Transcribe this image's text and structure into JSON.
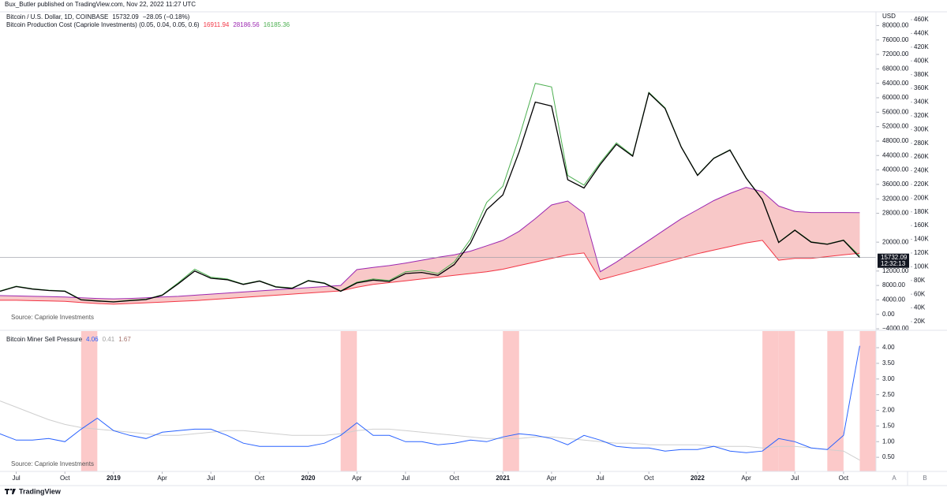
{
  "header": {
    "published": "Bux_Butler published on TradingView.com, Nov 22, 2022 11:27 UTC"
  },
  "footer": {
    "brand": "TradingView"
  },
  "buttons": [
    "A",
    "B"
  ],
  "chart_data": [
    {
      "type": "line",
      "title": "Bitcoin / U.S. Dollar, 1D, COINBASE",
      "price_last": 15732.09,
      "price_change": "−28.05 (−0.18%)",
      "countdown": "12:32:13",
      "indicator": "Bitcoin Production Cost (Capriole Investments) (0.05, 0.04, 0.05, 0.6)",
      "legend_values": [
        16911.94,
        28186.56,
        16185.36
      ],
      "axis_unit": "USD",
      "source": "Source: Capriole Investments",
      "x": [
        "2018-06",
        "2018-07",
        "2018-08",
        "2018-09",
        "2018-10",
        "2018-11",
        "2018-12",
        "2019-01",
        "2019-02",
        "2019-03",
        "2019-04",
        "2019-05",
        "2019-06",
        "2019-07",
        "2019-08",
        "2019-09",
        "2019-10",
        "2019-11",
        "2019-12",
        "2020-01",
        "2020-02",
        "2020-03",
        "2020-04",
        "2020-05",
        "2020-06",
        "2020-07",
        "2020-08",
        "2020-09",
        "2020-10",
        "2020-11",
        "2020-12",
        "2021-01",
        "2021-02",
        "2021-03",
        "2021-04",
        "2021-05",
        "2021-06",
        "2021-07",
        "2021-08",
        "2021-09",
        "2021-10",
        "2021-11",
        "2021-12",
        "2022-01",
        "2022-02",
        "2022-03",
        "2022-04",
        "2022-05",
        "2022-06",
        "2022-07",
        "2022-08",
        "2022-09",
        "2022-10",
        "2022-11"
      ],
      "xlim": [
        "2018-06",
        "2022-12"
      ],
      "series": [
        {
          "color": "#000000",
          "values": [
            6400,
            7700,
            7000,
            6600,
            6400,
            4000,
            3700,
            3450,
            3800,
            4100,
            5300,
            8500,
            12000,
            10000,
            9600,
            8300,
            9200,
            7600,
            7200,
            9300,
            8600,
            6400,
            8700,
            9500,
            9100,
            11300,
            11600,
            10800,
            13800,
            19700,
            29000,
            33100,
            45000,
            58800,
            57700,
            37300,
            35000,
            41500,
            47100,
            43800,
            61300,
            57000,
            46300,
            38500,
            43200,
            45500,
            37700,
            31800,
            19900,
            23300,
            20000,
            19400,
            20500,
            15732.09
          ]
        },
        {
          "color": "#f23645",
          "values": [
            3900,
            3900,
            3800,
            3700,
            3600,
            3300,
            3000,
            2800,
            3000,
            3200,
            3400,
            3600,
            3800,
            4100,
            4400,
            4700,
            5000,
            5300,
            5600,
            5900,
            6200,
            6500,
            7500,
            8300,
            8800,
            9300,
            9800,
            10300,
            10800,
            11300,
            11800,
            12500,
            13500,
            14500,
            15500,
            16500,
            17000,
            9600,
            10800,
            12000,
            13200,
            14400,
            15600,
            16800,
            17800,
            18800,
            19800,
            20500,
            15000,
            15500,
            15500,
            16000,
            16500,
            16911.94
          ]
        },
        {
          "color": "#9c27b0",
          "values": [
            5200,
            5100,
            5000,
            4900,
            4800,
            4600,
            4400,
            4300,
            4400,
            4600,
            4800,
            5000,
            5300,
            5600,
            5900,
            6200,
            6500,
            6800,
            7100,
            7400,
            7700,
            8000,
            12400,
            13000,
            13500,
            14200,
            15000,
            15800,
            16500,
            17500,
            19000,
            20500,
            23000,
            26500,
            30300,
            31400,
            28000,
            11800,
            14500,
            17500,
            20500,
            23500,
            26500,
            29000,
            31500,
            33500,
            35200,
            34000,
            30000,
            28500,
            28200,
            28200,
            28200,
            28186.56
          ]
        },
        {
          "color": "#4caf50",
          "values": [
            6500,
            7800,
            7100,
            6700,
            6500,
            4100,
            3800,
            3500,
            3900,
            4200,
            5400,
            8800,
            12500,
            10300,
            9800,
            8400,
            9300,
            7700,
            7300,
            9400,
            8700,
            6500,
            8900,
            9800,
            9400,
            11800,
            12200,
            11300,
            14500,
            20800,
            31000,
            35500,
            49000,
            64000,
            63000,
            38500,
            35800,
            42000,
            47500,
            44000,
            61500,
            57200,
            46400,
            38600,
            43300,
            45600,
            37800,
            31900,
            20000,
            23400,
            20100,
            19500,
            20600,
            16185.36
          ]
        }
      ],
      "band_color": "#f8c8c8",
      "ylim": [
        -4200,
        83800
      ],
      "yticks": [
        {
          "value": 80000,
          "label": "80000.00"
        },
        {
          "value": 76000,
          "label": "76000.00"
        },
        {
          "value": 72000,
          "label": "72000.00"
        },
        {
          "value": 68000,
          "label": "68000.00"
        },
        {
          "value": 64000,
          "label": "64000.00"
        },
        {
          "value": 60000,
          "label": "60000.00"
        },
        {
          "value": 56000,
          "label": "56000.00"
        },
        {
          "value": 52000,
          "label": "52000.00"
        },
        {
          "value": 48000,
          "label": "48000.00"
        },
        {
          "value": 44000,
          "label": "44000.00"
        },
        {
          "value": 40000,
          "label": "40000.00"
        },
        {
          "value": 36000,
          "label": "36000.00"
        },
        {
          "value": 32000,
          "label": "32000.00"
        },
        {
          "value": 28000,
          "label": "28000.00"
        },
        {
          "value": 20000,
          "label": "20000.00"
        },
        {
          "value": 12000,
          "label": "12000.00"
        },
        {
          "value": 8000,
          "label": "8000.00"
        },
        {
          "value": 4000,
          "label": "4000.00"
        },
        {
          "value": 0,
          "label": "0.00"
        },
        {
          "value": -4000,
          "label": "−4000.00"
        }
      ],
      "y2lim": [
        8500,
        471500
      ],
      "y2ticks": [
        {
          "value": 460000,
          "label": "460K"
        },
        {
          "value": 440000,
          "label": "440K"
        },
        {
          "value": 420000,
          "label": "420K"
        },
        {
          "value": 400000,
          "label": "400K"
        },
        {
          "value": 380000,
          "label": "380K"
        },
        {
          "value": 360000,
          "label": "360K"
        },
        {
          "value": 340000,
          "label": "340K"
        },
        {
          "value": 320000,
          "label": "320K"
        },
        {
          "value": 300000,
          "label": "300K"
        },
        {
          "value": 280000,
          "label": "280K"
        },
        {
          "value": 260000,
          "label": "260K"
        },
        {
          "value": 240000,
          "label": "240K"
        },
        {
          "value": 220000,
          "label": "220K"
        },
        {
          "value": 200000,
          "label": "200K"
        },
        {
          "value": 180000,
          "label": "180K"
        },
        {
          "value": 160000,
          "label": "160K"
        },
        {
          "value": 140000,
          "label": "140K"
        },
        {
          "value": 120000,
          "label": "120K"
        },
        {
          "value": 100000,
          "label": "100K"
        },
        {
          "value": 80000,
          "label": "80K"
        },
        {
          "value": 60000,
          "label": "60K"
        },
        {
          "value": 40000,
          "label": "40K"
        },
        {
          "value": 20000,
          "label": "20K"
        }
      ]
    },
    {
      "type": "line",
      "title": "Bitcoin Miner Sell Pressure",
      "legend_values": [
        4.06,
        0.41,
        1.67
      ],
      "legend_colors": [
        "#2962ff",
        "#9e9e9e",
        "#a5716b"
      ],
      "source": "Source: Capriole Investments",
      "x": [
        "2018-06",
        "2018-07",
        "2018-08",
        "2018-09",
        "2018-10",
        "2018-11",
        "2018-12",
        "2019-01",
        "2019-02",
        "2019-03",
        "2019-04",
        "2019-05",
        "2019-06",
        "2019-07",
        "2019-08",
        "2019-09",
        "2019-10",
        "2019-11",
        "2019-12",
        "2020-01",
        "2020-02",
        "2020-03",
        "2020-04",
        "2020-05",
        "2020-06",
        "2020-07",
        "2020-08",
        "2020-09",
        "2020-10",
        "2020-11",
        "2020-12",
        "2021-01",
        "2021-02",
        "2021-03",
        "2021-04",
        "2021-05",
        "2021-06",
        "2021-07",
        "2021-08",
        "2021-09",
        "2021-10",
        "2021-11",
        "2021-12",
        "2022-01",
        "2022-02",
        "2022-03",
        "2022-04",
        "2022-05",
        "2022-06",
        "2022-07",
        "2022-08",
        "2022-09",
        "2022-10",
        "2022-11"
      ],
      "xlim": [
        "2018-06",
        "2022-12"
      ],
      "series": [
        {
          "color": "#2962ff",
          "values": [
            1.25,
            1.05,
            1.05,
            1.1,
            1.0,
            1.4,
            1.75,
            1.35,
            1.2,
            1.1,
            1.3,
            1.35,
            1.4,
            1.4,
            1.2,
            0.95,
            0.85,
            0.85,
            0.85,
            0.85,
            0.95,
            1.2,
            1.6,
            1.2,
            1.2,
            1.0,
            1.0,
            0.9,
            0.95,
            1.05,
            1.0,
            1.15,
            1.25,
            1.2,
            1.1,
            0.9,
            1.2,
            1.05,
            0.85,
            0.8,
            0.8,
            0.7,
            0.75,
            0.75,
            0.85,
            0.7,
            0.65,
            0.7,
            1.1,
            1.0,
            0.8,
            0.75,
            1.2,
            4.06
          ]
        },
        {
          "color": "#cfcfcf",
          "values": [
            2.3,
            2.1,
            1.9,
            1.7,
            1.55,
            1.45,
            1.4,
            1.35,
            1.3,
            1.25,
            1.2,
            1.2,
            1.25,
            1.3,
            1.35,
            1.35,
            1.3,
            1.25,
            1.2,
            1.2,
            1.2,
            1.25,
            1.35,
            1.4,
            1.4,
            1.35,
            1.3,
            1.25,
            1.2,
            1.15,
            1.1,
            1.1,
            1.1,
            1.15,
            1.15,
            1.1,
            1.05,
            1.0,
            0.95,
            0.95,
            0.9,
            0.9,
            0.9,
            0.9,
            0.85,
            0.85,
            0.85,
            0.8,
            0.85,
            0.85,
            0.8,
            0.75,
            0.7,
            0.41
          ]
        }
      ],
      "highlight_color": "#fcc9c9",
      "highlight_ranges": [
        [
          "2018-11",
          "2018-12"
        ],
        [
          "2020-03",
          "2020-04"
        ],
        [
          "2021-01",
          "2021-02"
        ],
        [
          "2022-05",
          "2022-06"
        ],
        [
          "2022-06",
          "2022-07"
        ],
        [
          "2022-09",
          "2022-10"
        ],
        [
          "2022-11",
          "2022-12"
        ]
      ],
      "ylim": [
        0.05,
        4.53
      ],
      "yticks": [
        {
          "value": 4,
          "label": "4.00"
        },
        {
          "value": 3.5,
          "label": "3.50"
        },
        {
          "value": 3,
          "label": "3.00"
        },
        {
          "value": 2.5,
          "label": "2.50"
        },
        {
          "value": 2,
          "label": "2.00"
        },
        {
          "value": 1.5,
          "label": "1.50"
        },
        {
          "value": 1,
          "label": "1.00"
        },
        {
          "value": 0.5,
          "label": "0.50"
        }
      ],
      "xticks": [
        {
          "value": "2018-07",
          "label": "Jul"
        },
        {
          "value": "2018-10",
          "label": "Oct"
        },
        {
          "value": "2019-01",
          "label": "2019"
        },
        {
          "value": "2019-04",
          "label": "Apr"
        },
        {
          "value": "2019-07",
          "label": "Jul"
        },
        {
          "value": "2019-10",
          "label": "Oct"
        },
        {
          "value": "2020-01",
          "label": "2020"
        },
        {
          "value": "2020-04",
          "label": "Apr"
        },
        {
          "value": "2020-07",
          "label": "Jul"
        },
        {
          "value": "2020-10",
          "label": "Oct"
        },
        {
          "value": "2021-01",
          "label": "2021"
        },
        {
          "value": "2021-04",
          "label": "Apr"
        },
        {
          "value": "2021-07",
          "label": "Jul"
        },
        {
          "value": "2021-10",
          "label": "Oct"
        },
        {
          "value": "2022-01",
          "label": "2022"
        },
        {
          "value": "2022-04",
          "label": "Apr"
        },
        {
          "value": "2022-07",
          "label": "Jul"
        },
        {
          "value": "2022-10",
          "label": "Oct"
        }
      ]
    }
  ]
}
